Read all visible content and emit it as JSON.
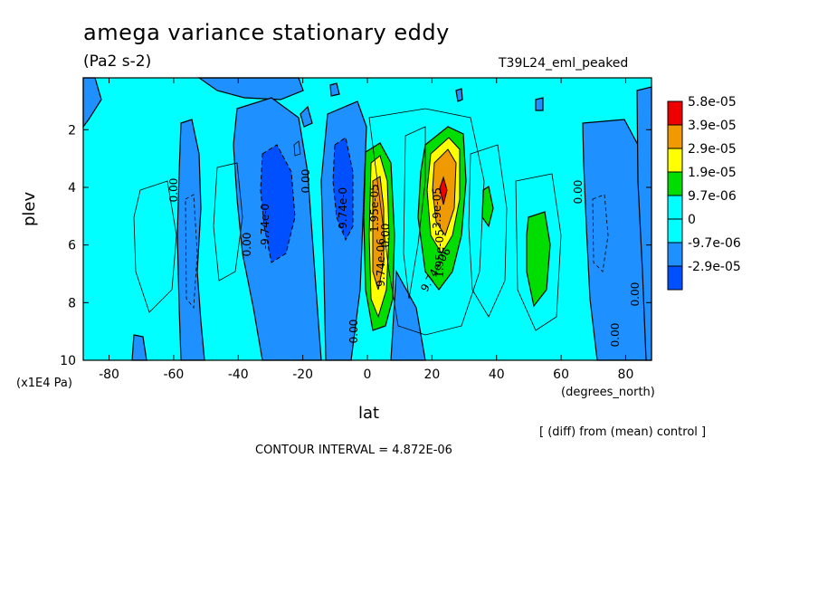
{
  "chart_data": {
    "type": "heatmap",
    "title": "amega variance stationary eddy",
    "units": "(Pa2 s-2)",
    "run_name": "T39L24_eml_peaked",
    "xlabel": "lat",
    "ylabel": "plev",
    "x_units": "(degrees_north)",
    "y_units": "(x1E4 Pa)",
    "diff_note": "[ (diff) from (mean) control ]",
    "contour_interval": "CONTOUR INTERVAL = 4.872E-06",
    "xlim": [
      -88,
      88
    ],
    "ylim": [
      10,
      0.2
    ],
    "x_ticks": [
      -80,
      -60,
      -40,
      -20,
      0,
      20,
      40,
      60,
      80
    ],
    "y_ticks": [
      2,
      4,
      6,
      8,
      10
    ],
    "legend": [
      {
        "label": "5.8e-05",
        "color": "#ee0000"
      },
      {
        "label": "3.9e-05",
        "color": "#ee9a00"
      },
      {
        "label": "2.9e-05",
        "color": "#ffff00"
      },
      {
        "label": "1.9e-05",
        "color": "#00dd00"
      },
      {
        "label": "9.7e-06",
        "color": "#00ffff"
      },
      {
        "label": "0",
        "color": "#1e90ff"
      },
      {
        "label": "-9.7e-06",
        "color": "#1e90ff"
      },
      {
        "label": "-2.9e-05",
        "color": "#0050ff"
      }
    ],
    "contour_labels": [
      "0.00",
      "-9.74e-0",
      "0.00",
      "-9.74e-0",
      "1.95e-05",
      "9.74e-06",
      "0.00",
      "3.9e-05",
      "1.95e-05",
      "9.74e-06",
      "0.00",
      "0.00",
      "0.00",
      "0.00",
      "0.00"
    ],
    "features": [
      {
        "kind": "positive-max",
        "lat": 22,
        "plev": 4.0,
        "value": 5.8e-05
      },
      {
        "kind": "positive-band",
        "lat": 4,
        "plev": 5.5,
        "value": 3.9e-05
      },
      {
        "kind": "negative-band",
        "lat": -27,
        "plev": 4.5,
        "value": -1.5e-05
      },
      {
        "kind": "negative-band",
        "lat": -7,
        "plev": 4.0,
        "value": -1.5e-05
      }
    ]
  }
}
